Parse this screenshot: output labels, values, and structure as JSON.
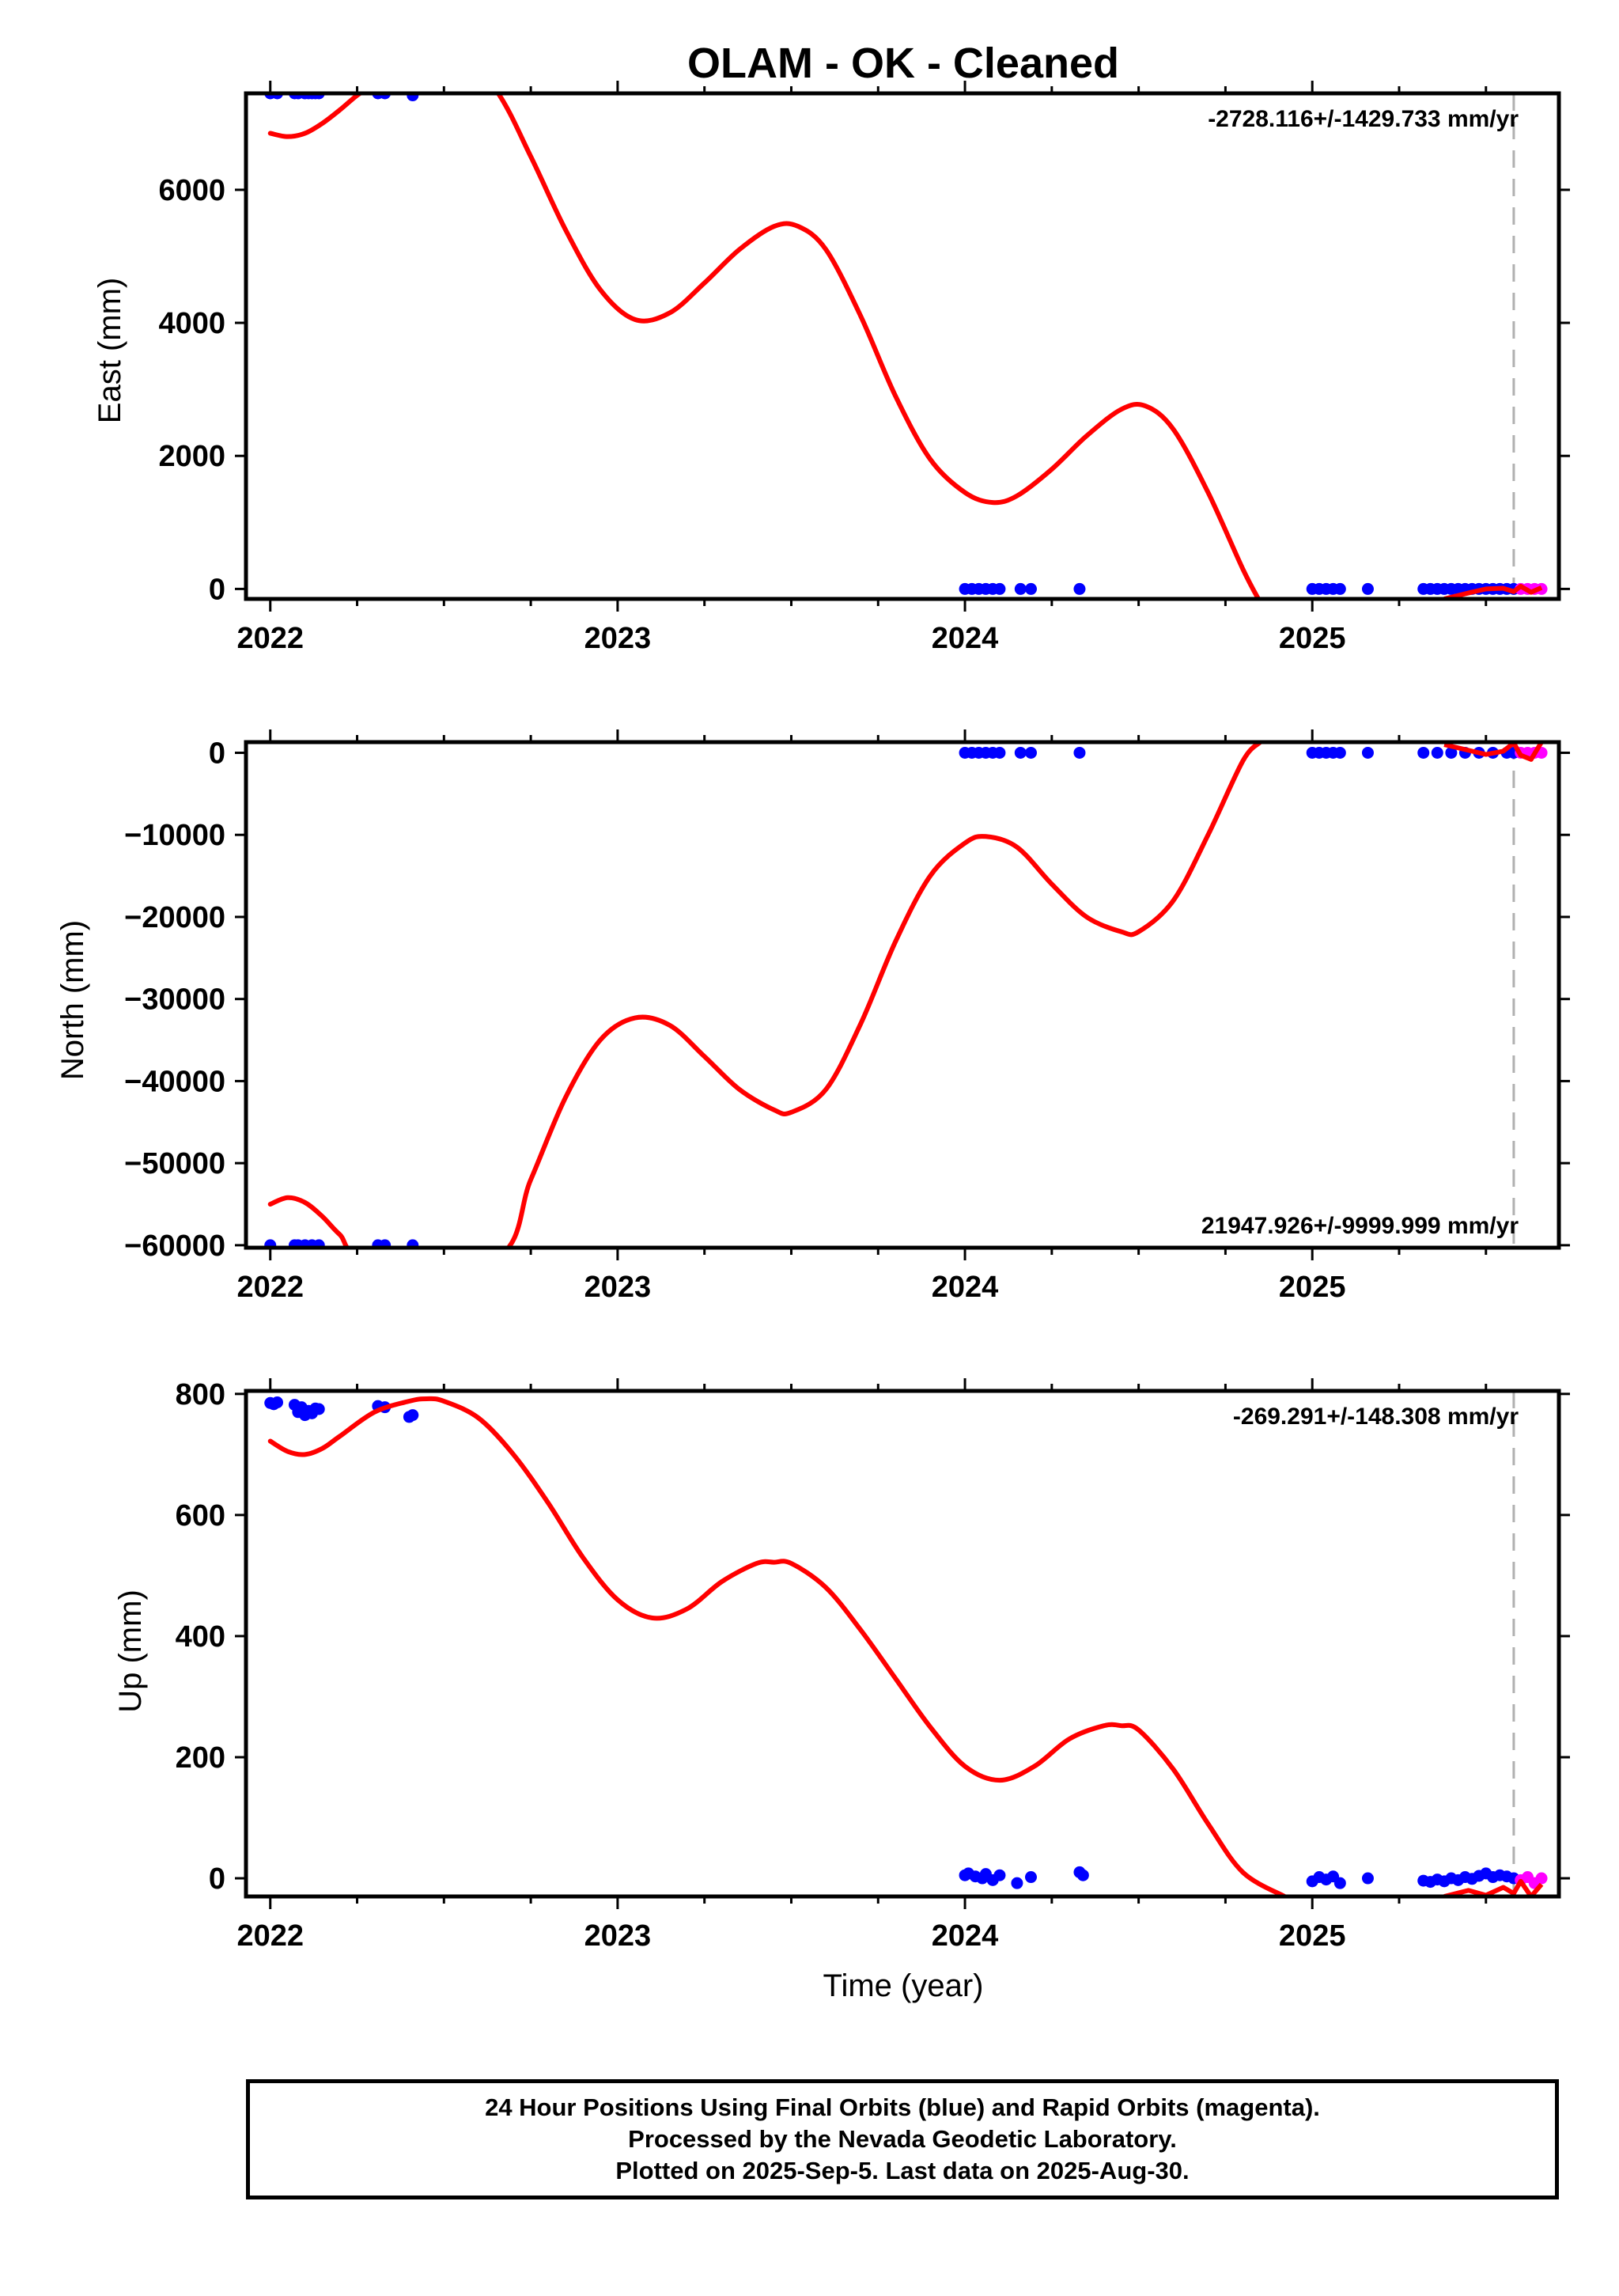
{
  "title": "OLAM  - OK - Cleaned",
  "footer": {
    "line1": "24 Hour Positions Using Final Orbits (blue) and Rapid Orbits (magenta).",
    "line2": "Processed by the Nevada Geodetic Laboratory.",
    "line3": "Plotted on 2025-Sep-5. Last data on 2025-Aug-30."
  },
  "colors": {
    "final_orbits": "#0000ff",
    "rapid_orbits": "#ff00ff",
    "model": "#ff0000",
    "dashed_line": "#b0b0b0"
  },
  "chart_data": [
    {
      "type": "scatter",
      "panel": "east",
      "ylabel": "East (mm)",
      "xlabel": "",
      "xlim": [
        2021.93,
        2025.71
      ],
      "ylim": [
        -150,
        7450
      ],
      "yticks": [
        0,
        2000,
        4000,
        6000
      ],
      "ytick_labels": [
        "0",
        "2000",
        "4000",
        "6000"
      ],
      "xticks": [
        2022,
        2023,
        2024,
        2025
      ],
      "xtick_labels": [
        "2022",
        "2023",
        "2024",
        "2025"
      ],
      "rate_label": "-2728.116+/-1429.733 mm/yr",
      "rate_position": "top-right",
      "dashed_line_x": 2025.58,
      "final_orbits": {
        "x": [
          2022.0,
          2022.02,
          2022.07,
          2022.08,
          2022.1,
          2022.11,
          2022.12,
          2022.13,
          2022.14,
          2022.31,
          2022.33,
          2022.41,
          2024.0,
          2024.02,
          2024.04,
          2024.06,
          2024.08,
          2024.1,
          2024.16,
          2024.19,
          2024.33,
          2025.0,
          2025.02,
          2025.04,
          2025.06,
          2025.08,
          2025.16,
          2025.32,
          2025.34,
          2025.36,
          2025.38,
          2025.4,
          2025.42,
          2025.44,
          2025.46,
          2025.48,
          2025.5,
          2025.52,
          2025.54,
          2025.56,
          2025.58
        ],
        "y": [
          7450,
          7450,
          7450,
          7450,
          7450,
          7450,
          7450,
          7450,
          7450,
          7450,
          7450,
          7420,
          0,
          0,
          0,
          0,
          0,
          0,
          0,
          0,
          0,
          0,
          0,
          0,
          0,
          0,
          0,
          0,
          0,
          0,
          0,
          0,
          0,
          0,
          0,
          0,
          0,
          0,
          0,
          0,
          0
        ]
      },
      "rapid_orbits": {
        "x": [
          2025.6,
          2025.62,
          2025.64,
          2025.66
        ],
        "y": [
          0,
          0,
          0,
          0
        ]
      },
      "model": {
        "x": [
          2022.0,
          2022.05,
          2022.1,
          2022.15,
          2022.2,
          2022.25,
          2022.3,
          2022.5,
          2022.65,
          2022.75,
          2022.85,
          2022.95,
          2023.05,
          2023.15,
          2023.25,
          2023.35,
          2023.45,
          2023.52,
          2023.6,
          2023.7,
          2023.8,
          2023.9,
          2024.0,
          2024.08,
          2024.15,
          2024.25,
          2024.35,
          2024.45,
          2024.52,
          2024.6,
          2024.7,
          2024.8,
          2024.85
        ],
        "y": [
          6850,
          6800,
          6850,
          7000,
          7200,
          7420,
          7600,
          8400,
          7500,
          6500,
          5400,
          4500,
          4050,
          4150,
          4600,
          5100,
          5450,
          5450,
          5100,
          4100,
          2900,
          1950,
          1450,
          1300,
          1400,
          1800,
          2300,
          2700,
          2750,
          2400,
          1450,
          300,
          -200
        ]
      },
      "model_end": {
        "x": [
          2025.38,
          2025.45,
          2025.5,
          2025.55,
          2025.58,
          2025.6,
          2025.63,
          2025.66
        ],
        "y": [
          -150,
          -60,
          0,
          10,
          -40,
          40,
          -50,
          20
        ]
      }
    },
    {
      "type": "scatter",
      "panel": "north",
      "ylabel": "North (mm)",
      "xlabel": "",
      "xlim": [
        2021.93,
        2025.71
      ],
      "ylim": [
        -60300,
        1300
      ],
      "yticks": [
        -60000,
        -50000,
        -40000,
        -30000,
        -20000,
        -10000,
        0
      ],
      "ytick_labels": [
        "−60000",
        "−50000",
        "−40000",
        "−30000",
        "−20000",
        "−10000",
        "0"
      ],
      "xticks": [
        2022,
        2023,
        2024,
        2025
      ],
      "xtick_labels": [
        "2022",
        "2023",
        "2024",
        "2025"
      ],
      "rate_label": "21947.926+/-9999.999 mm/yr",
      "rate_position": "bottom-right",
      "dashed_line_x": 2025.58,
      "final_orbits": {
        "x": [
          2022.0,
          2022.07,
          2022.08,
          2022.1,
          2022.12,
          2022.14,
          2022.31,
          2022.33,
          2022.41,
          2024.0,
          2024.02,
          2024.04,
          2024.06,
          2024.08,
          2024.1,
          2024.16,
          2024.19,
          2024.33,
          2025.0,
          2025.02,
          2025.04,
          2025.06,
          2025.08,
          2025.16,
          2025.32,
          2025.36,
          2025.4,
          2025.44,
          2025.48,
          2025.52,
          2025.56,
          2025.58
        ],
        "y": [
          -60000,
          -60000,
          -60000,
          -60000,
          -60000,
          -60000,
          -60000,
          -60000,
          -60000,
          0,
          0,
          0,
          0,
          0,
          0,
          0,
          0,
          0,
          0,
          0,
          0,
          0,
          0,
          0,
          0,
          0,
          0,
          0,
          0,
          0,
          0,
          0
        ]
      },
      "rapid_orbits": {
        "x": [
          2025.6,
          2025.62,
          2025.64,
          2025.66
        ],
        "y": [
          0,
          0,
          0,
          0
        ]
      },
      "model": {
        "x": [
          2022.0,
          2022.05,
          2022.1,
          2022.15,
          2022.2,
          2022.28,
          2022.65,
          2022.75,
          2022.85,
          2022.95,
          2023.05,
          2023.15,
          2023.25,
          2023.35,
          2023.45,
          2023.5,
          2023.6,
          2023.7,
          2023.8,
          2023.9,
          2024.0,
          2024.06,
          2024.15,
          2024.25,
          2024.35,
          2024.45,
          2024.5,
          2024.6,
          2024.7,
          2024.8,
          2024.85
        ],
        "y": [
          -55000,
          -54200,
          -54800,
          -56500,
          -58700,
          -61500,
          -61500,
          -52000,
          -42000,
          -35000,
          -32300,
          -33200,
          -37000,
          -41000,
          -43500,
          -43800,
          -41000,
          -33000,
          -23000,
          -15000,
          -11000,
          -10200,
          -11500,
          -16000,
          -20000,
          -21800,
          -21800,
          -18000,
          -10000,
          -1000,
          1300
        ]
      },
      "model_end": {
        "x": [
          2025.38,
          2025.45,
          2025.5,
          2025.55,
          2025.58,
          2025.6,
          2025.63,
          2025.66
        ],
        "y": [
          1000,
          300,
          -200,
          200,
          1200,
          -300,
          -800,
          1300
        ]
      }
    },
    {
      "type": "scatter",
      "panel": "up",
      "ylabel": "Up (mm)",
      "xlabel": "Time (year)",
      "xlim": [
        2021.93,
        2025.71
      ],
      "ylim": [
        -30,
        805
      ],
      "yticks": [
        0,
        200,
        400,
        600,
        800
      ],
      "ytick_labels": [
        "0",
        "200",
        "400",
        "600",
        "800"
      ],
      "xticks": [
        2022,
        2023,
        2024,
        2025
      ],
      "xtick_labels": [
        "2022",
        "2023",
        "2024",
        "2025"
      ],
      "rate_label": "-269.291+/-148.308 mm/yr",
      "rate_position": "top-right",
      "dashed_line_x": 2025.58,
      "final_orbits": {
        "x": [
          2022.0,
          2022.01,
          2022.02,
          2022.07,
          2022.08,
          2022.09,
          2022.1,
          2022.11,
          2022.12,
          2022.13,
          2022.14,
          2022.31,
          2022.33,
          2022.4,
          2022.41,
          2024.0,
          2024.01,
          2024.03,
          2024.05,
          2024.06,
          2024.08,
          2024.1,
          2024.15,
          2024.19,
          2024.33,
          2024.34,
          2025.0,
          2025.02,
          2025.04,
          2025.06,
          2025.08,
          2025.16,
          2025.32,
          2025.34,
          2025.36,
          2025.38,
          2025.4,
          2025.42,
          2025.44,
          2025.46,
          2025.48,
          2025.5,
          2025.52,
          2025.54,
          2025.56,
          2025.58
        ],
        "y": [
          785,
          783,
          786,
          782,
          770,
          778,
          765,
          772,
          768,
          776,
          775,
          780,
          778,
          762,
          765,
          5,
          8,
          3,
          0,
          7,
          -3,
          5,
          -8,
          2,
          10,
          5,
          -5,
          2,
          -2,
          3,
          -8,
          0,
          -4,
          -6,
          -2,
          -5,
          0,
          -3,
          2,
          -1,
          4,
          8,
          2,
          5,
          3,
          0
        ]
      },
      "rapid_orbits": {
        "x": [
          2025.6,
          2025.62,
          2025.64,
          2025.66
        ],
        "y": [
          -3,
          2,
          -8,
          0
        ]
      },
      "model": {
        "x": [
          2022.0,
          2022.05,
          2022.1,
          2022.15,
          2022.2,
          2022.3,
          2022.4,
          2022.45,
          2022.5,
          2022.6,
          2022.7,
          2022.8,
          2022.9,
          2023.0,
          2023.1,
          2023.2,
          2023.3,
          2023.4,
          2023.45,
          2023.5,
          2023.6,
          2023.7,
          2023.8,
          2023.9,
          2024.0,
          2024.1,
          2024.2,
          2024.3,
          2024.4,
          2024.45,
          2024.5,
          2024.6,
          2024.7,
          2024.8,
          2024.92
        ],
        "y": [
          722,
          705,
          700,
          710,
          730,
          770,
          788,
          792,
          788,
          760,
          700,
          620,
          530,
          460,
          430,
          445,
          490,
          520,
          522,
          520,
          480,
          410,
          330,
          250,
          185,
          162,
          185,
          230,
          252,
          252,
          245,
          180,
          90,
          10,
          -30
        ]
      },
      "model_end": {
        "x": [
          2025.38,
          2025.45,
          2025.5,
          2025.55,
          2025.58,
          2025.6,
          2025.63,
          2025.66
        ],
        "y": [
          -30,
          -20,
          -28,
          -15,
          -25,
          -5,
          -30,
          -10
        ]
      }
    }
  ]
}
